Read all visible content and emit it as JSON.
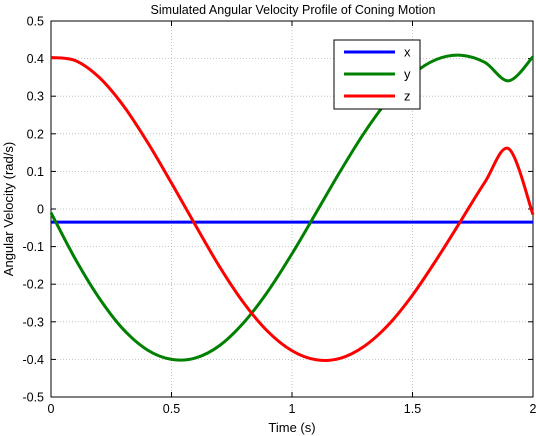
{
  "chart_data": {
    "type": "line",
    "title": "Simulated Angular Velocity Profile of Coning Motion",
    "xlabel": "Time (s)",
    "ylabel": "Angular Velocity (rad/s)",
    "xlim": [
      0,
      2
    ],
    "ylim": [
      -0.5,
      0.5
    ],
    "xticks": [
      0,
      0.5,
      1,
      1.5,
      2
    ],
    "xtick_labels": [
      "0",
      "0.5",
      "1",
      "1.5",
      "2"
    ],
    "yticks": [
      -0.5,
      -0.4,
      -0.3,
      -0.2,
      -0.1,
      0,
      0.1,
      0.2,
      0.3,
      0.4,
      0.5
    ],
    "ytick_labels": [
      "-0.5",
      "-0.4",
      "-0.3",
      "-0.2",
      "-0.1",
      "0",
      "0.1",
      "0.2",
      "0.3",
      "0.4",
      "0.5"
    ],
    "grid": true,
    "legend_position": "top-right",
    "series": [
      {
        "name": "x",
        "color": "#0000ff",
        "x": [
          0,
          0.25,
          0.5,
          0.75,
          1,
          1.25,
          1.5,
          1.75,
          2
        ],
        "y": [
          -0.035,
          -0.035,
          -0.035,
          -0.035,
          -0.035,
          -0.035,
          -0.035,
          -0.035,
          -0.035
        ]
      },
      {
        "name": "y",
        "color": "#008000",
        "x": [
          0,
          0.1,
          0.2,
          0.3,
          0.4,
          0.5,
          0.6,
          0.7,
          0.8,
          0.9,
          1.0,
          1.1,
          1.2,
          1.3,
          1.4,
          1.5,
          1.6,
          1.7,
          1.8,
          1.9,
          2.0
        ],
        "y": [
          -0.01,
          -0.132,
          -0.237,
          -0.32,
          -0.375,
          -0.4,
          -0.396,
          -0.363,
          -0.302,
          -0.219,
          -0.119,
          -0.01,
          0.1,
          0.203,
          0.291,
          0.358,
          0.398,
          0.409,
          0.39,
          0.341,
          0.405
        ]
      },
      {
        "name": "z",
        "color": "#ff0000",
        "x": [
          0,
          0.1,
          0.2,
          0.3,
          0.4,
          0.5,
          0.6,
          0.7,
          0.8,
          0.9,
          1.0,
          1.1,
          1.2,
          1.3,
          1.4,
          1.5,
          1.6,
          1.7,
          1.8,
          1.9,
          2.0
        ],
        "y": [
          0.403,
          0.395,
          0.35,
          0.275,
          0.178,
          0.069,
          -0.044,
          -0.154,
          -0.25,
          -0.326,
          -0.377,
          -0.401,
          -0.397,
          -0.365,
          -0.308,
          -0.229,
          -0.134,
          -0.032,
          0.071,
          0.16,
          -0.015
        ]
      }
    ]
  }
}
